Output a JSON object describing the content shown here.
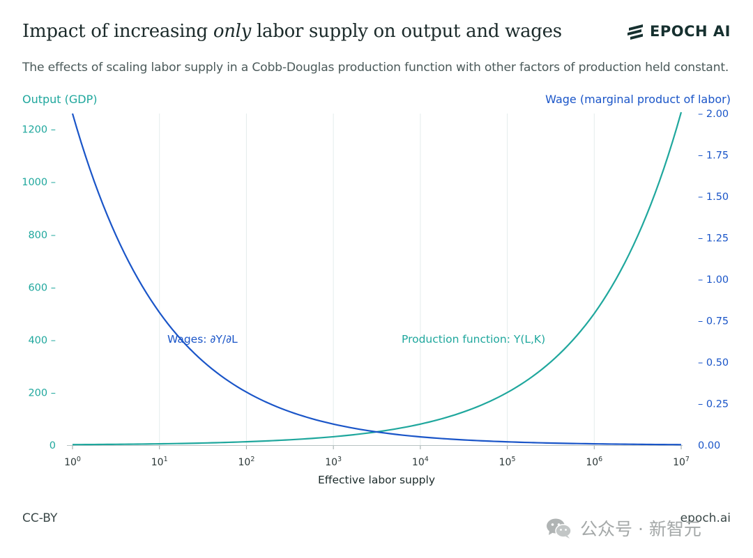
{
  "header": {
    "title_before": "Impact of increasing ",
    "title_emph": "only",
    "title_after": " labor supply on output and wages",
    "subtitle": "The effects of scaling labor supply in a Cobb-Douglas production function with other factors of production held constant."
  },
  "brand": {
    "name": "EPOCH AI",
    "icon": "epoch-logo-icon"
  },
  "colors": {
    "output": "#1fa79d",
    "wage": "#1a55c8",
    "grid": "#e3ecec",
    "text": "#1b2a2a"
  },
  "chart_data": {
    "type": "line",
    "xlabel": "Effective labor supply",
    "x_scale": "log",
    "xlim": [
      1,
      10000000
    ],
    "x_ticks": [
      {
        "base": "10",
        "exp": "0"
      },
      {
        "base": "10",
        "exp": "1"
      },
      {
        "base": "10",
        "exp": "2"
      },
      {
        "base": "10",
        "exp": "3"
      },
      {
        "base": "10",
        "exp": "4"
      },
      {
        "base": "10",
        "exp": "5"
      },
      {
        "base": "10",
        "exp": "6"
      },
      {
        "base": "10",
        "exp": "7"
      }
    ],
    "y_left": {
      "label": "Output (GDP)",
      "ylim": [
        0,
        1260
      ],
      "ticks": [
        0,
        200,
        400,
        600,
        800,
        1000,
        1200
      ],
      "tick_labels": [
        "0",
        "200 –",
        "400 –",
        "600 –",
        "800 –",
        "1000 –",
        "1200 –"
      ]
    },
    "y_right": {
      "label": "Wage (marginal product of labor)",
      "ylim": [
        0,
        2.0
      ],
      "ticks": [
        0,
        0.25,
        0.5,
        0.75,
        1.0,
        1.25,
        1.5,
        1.75,
        2.0
      ],
      "tick_labels": [
        "0.00",
        "– 0.25",
        "– 0.50",
        "– 0.75",
        "– 1.00",
        "– 1.25",
        "– 1.50",
        "– 1.75",
        "– 2.00"
      ]
    },
    "series": [
      {
        "name": "Production function: Y(L,K)",
        "axis": "left",
        "x": [
          1,
          10,
          100,
          1000,
          10000,
          100000,
          1000000,
          10000000
        ],
        "values": [
          2,
          5,
          13,
          32,
          80,
          200,
          500,
          1265
        ]
      },
      {
        "name": "Wages: ∂Y/∂L",
        "axis": "right",
        "x": [
          1,
          10,
          100,
          1000,
          10000,
          100000,
          1000000,
          10000000
        ],
        "values": [
          2.0,
          0.8,
          0.32,
          0.127,
          0.05,
          0.02,
          0.008,
          0.003
        ]
      }
    ]
  },
  "footer": {
    "license": "CC-BY",
    "site": "epoch.ai"
  },
  "watermark": {
    "text": "公众号 · 新智元",
    "icon": "wechat-icon"
  }
}
